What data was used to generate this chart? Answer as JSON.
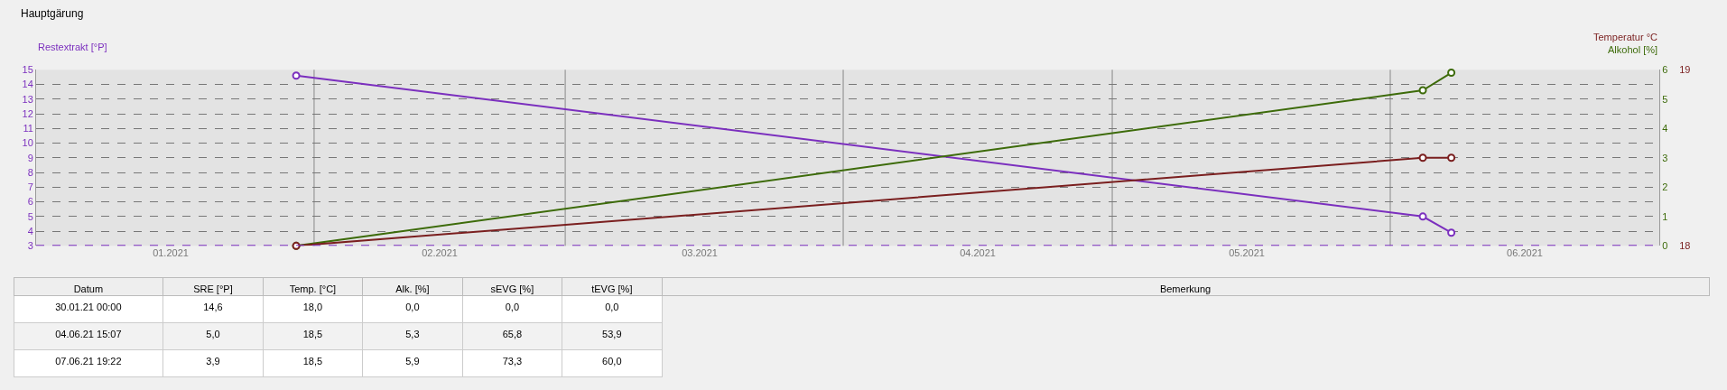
{
  "chart_data": [
    {
      "type": "line",
      "title": "Hauptgärung",
      "ylabel": "Restextrakt [°P]",
      "y2label": "Alkohol [%]",
      "y3label": "Temperatur °C",
      "x": [
        "2021-01-30T00:00",
        "2021-06-04T15:07",
        "2021-06-07T19:22"
      ],
      "series": [
        {
          "color": "#7b2fbe",
          "values": [
            14.6,
            5.0,
            3.9
          ]
        },
        {
          "color": "#7a1f1f",
          "values": [
            18.0,
            18.5,
            18.5
          ],
          "axis": "y3"
        },
        {
          "color": "#3d6b0a",
          "values": [
            0.0,
            5.3,
            5.9
          ],
          "axis": "y2"
        }
      ],
      "xlim": [
        "2021-01-01",
        "2021-07-01"
      ],
      "xticks": [
        {
          "value": "2021-02-01",
          "label": null
        },
        {
          "value": "2021-03-01",
          "label": null
        },
        {
          "value": "2021-04-01",
          "label": null
        },
        {
          "value": "2021-05-01",
          "label": null
        },
        {
          "value": "2021-06-01",
          "label": null
        },
        {
          "value": "2021-01-16",
          "label": "01.2021"
        },
        {
          "value": "2021-02-15",
          "label": "02.2021"
        },
        {
          "value": "2021-03-16",
          "label": "03.2021"
        },
        {
          "value": "2021-04-16",
          "label": "04.2021"
        },
        {
          "value": "2021-05-16",
          "label": "05.2021"
        },
        {
          "value": "2021-06-16",
          "label": "06.2021"
        }
      ],
      "ylim": [
        3,
        15
      ],
      "yticks": [
        3,
        4,
        5,
        6,
        7,
        8,
        9,
        10,
        11,
        12,
        13,
        14,
        15
      ],
      "y2lim": [
        0,
        6
      ],
      "y2ticks": [
        0,
        1,
        2,
        3,
        4,
        5,
        6
      ],
      "y3lim": [
        18,
        19
      ],
      "y3ticks": [
        18,
        19
      ],
      "ref_lines": [
        {
          "axis": "y",
          "value": 3,
          "color": "#7b2fbe",
          "line_style": "dashed"
        }
      ],
      "grid": true,
      "marker": "circle",
      "line_style": "solid"
    },
    {
      "type": "other",
      "categories": [
        "Datum",
        "SRE [°P]",
        "Temp. [°C]",
        "Alk. [%]",
        "sEVG [%]",
        "tEVG [%]",
        "Bemerkung"
      ],
      "cell_labels": [
        [
          "30.01.21 00:00",
          "14,6",
          "18,0",
          "0,0",
          "0,0",
          "0,0",
          null
        ],
        [
          "04.06.21 15:07",
          "5,0",
          "18,5",
          "5,3",
          "65,8",
          "53,9",
          null
        ],
        [
          "07.06.21 19:22",
          "3,9",
          "18,5",
          "5,9",
          "73,3",
          "60,0",
          null
        ]
      ]
    }
  ]
}
